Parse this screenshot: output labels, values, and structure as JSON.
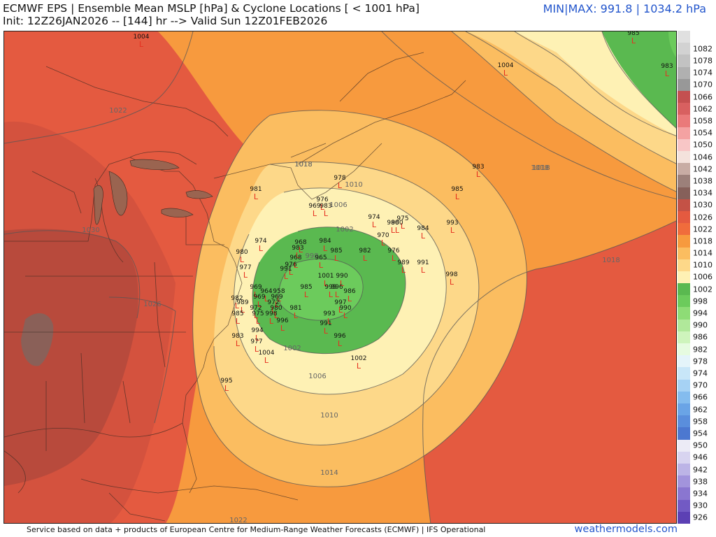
{
  "header": {
    "title_line1": "ECMWF EPS | Ensemble Mean MSLP [hPa] & Cyclone Locations [ < 1001 hPa]",
    "title_line2": "Init: 12Z26JAN2026 -- [144] hr --> Valid Sun 12Z01FEB2026",
    "minmax": "MIN|MAX: 991.8 | 1034.2 hPa"
  },
  "footer": {
    "credit": "Service based on data + products of European Centre for Medium-Range Weather Forecasts (ECMWF) | IFS Operational",
    "brand": "weathermodels.com"
  },
  "legend": {
    "levels": [
      {
        "label": "",
        "color": "#e0e0e0"
      },
      {
        "label": "1082",
        "color": "#d2d2d2"
      },
      {
        "label": "1078",
        "color": "#c2c2c2"
      },
      {
        "label": "1074",
        "color": "#b0b0b0"
      },
      {
        "label": "1070",
        "color": "#989898"
      },
      {
        "label": "1066",
        "color": "#c45050"
      },
      {
        "label": "1062",
        "color": "#d86060"
      },
      {
        "label": "1058",
        "color": "#ea7a7a"
      },
      {
        "label": "1054",
        "color": "#f4a2a2"
      },
      {
        "label": "1050",
        "color": "#f8c6c6"
      },
      {
        "label": "1046",
        "color": "#f4e2dc"
      },
      {
        "label": "1042",
        "color": "#c8aca4"
      },
      {
        "label": "1038",
        "color": "#9c807a"
      },
      {
        "label": "1034",
        "color": "#86605a"
      },
      {
        "label": "1030",
        "color": "#c45246"
      },
      {
        "label": "1026",
        "color": "#e45a40"
      },
      {
        "label": "1022",
        "color": "#f06c3c"
      },
      {
        "label": "1018",
        "color": "#f79a3e"
      },
      {
        "label": "1014",
        "color": "#fbbd60"
      },
      {
        "label": "1010",
        "color": "#fdd889"
      },
      {
        "label": "1006",
        "color": "#fef1b4"
      },
      {
        "label": "1002",
        "color": "#5ab950"
      },
      {
        "label": "998",
        "color": "#6ccb5c"
      },
      {
        "label": "994",
        "color": "#8edc76"
      },
      {
        "label": "990",
        "color": "#b0e89a"
      },
      {
        "label": "986",
        "color": "#cef4bc"
      },
      {
        "label": "982",
        "color": "#e6fbe0"
      },
      {
        "label": "978",
        "color": "#e4f4fa"
      },
      {
        "label": "974",
        "color": "#c8e6f8"
      },
      {
        "label": "970",
        "color": "#a6d2f4"
      },
      {
        "label": "966",
        "color": "#84bcee"
      },
      {
        "label": "962",
        "color": "#6aa4e6"
      },
      {
        "label": "958",
        "color": "#5a8edc"
      },
      {
        "label": "954",
        "color": "#4c78d0"
      },
      {
        "label": "950",
        "color": "#ecebf6"
      },
      {
        "label": "946",
        "color": "#d8d4f0"
      },
      {
        "label": "942",
        "color": "#bcb4e6"
      },
      {
        "label": "938",
        "color": "#a294dc"
      },
      {
        "label": "934",
        "color": "#8a76d0"
      },
      {
        "label": "930",
        "color": "#725ac4"
      },
      {
        "label": "926",
        "color": "#5c40b4"
      }
    ]
  },
  "contours": {
    "lines": [
      {
        "label": "1022"
      },
      {
        "label": "1030"
      },
      {
        "label": "1026"
      },
      {
        "label": "1018"
      },
      {
        "label": "1018"
      },
      {
        "label": "1010"
      },
      {
        "label": "1006"
      },
      {
        "label": "1002"
      },
      {
        "label": "998"
      },
      {
        "label": "1002"
      },
      {
        "label": "1006"
      },
      {
        "label": "1010"
      },
      {
        "label": "1014"
      },
      {
        "label": "1018"
      },
      {
        "label": "1022"
      },
      {
        "label": "1018"
      },
      {
        "label": "1018"
      }
    ]
  },
  "cyclones": {
    "symbol": "L",
    "symbol_color": "#e53020",
    "pressures": [
      "1004",
      "1004",
      "985",
      "983",
      "983",
      "985",
      "978",
      "981",
      "976",
      "969",
      "983",
      "974",
      "975",
      "980",
      "980",
      "984",
      "993",
      "970",
      "974",
      "968",
      "984",
      "983",
      "982",
      "976",
      "968",
      "965",
      "985",
      "976",
      "989",
      "991",
      "980",
      "977",
      "991",
      "998",
      "1001",
      "990",
      "969",
      "964",
      "958",
      "985",
      "999",
      "996",
      "986",
      "982",
      "989",
      "969",
      "969",
      "972",
      "981",
      "997",
      "972",
      "980",
      "990",
      "975",
      "998",
      "993",
      "985",
      "996",
      "991",
      "983",
      "994",
      "996",
      "977",
      "1004",
      "1002",
      "995"
    ]
  }
}
